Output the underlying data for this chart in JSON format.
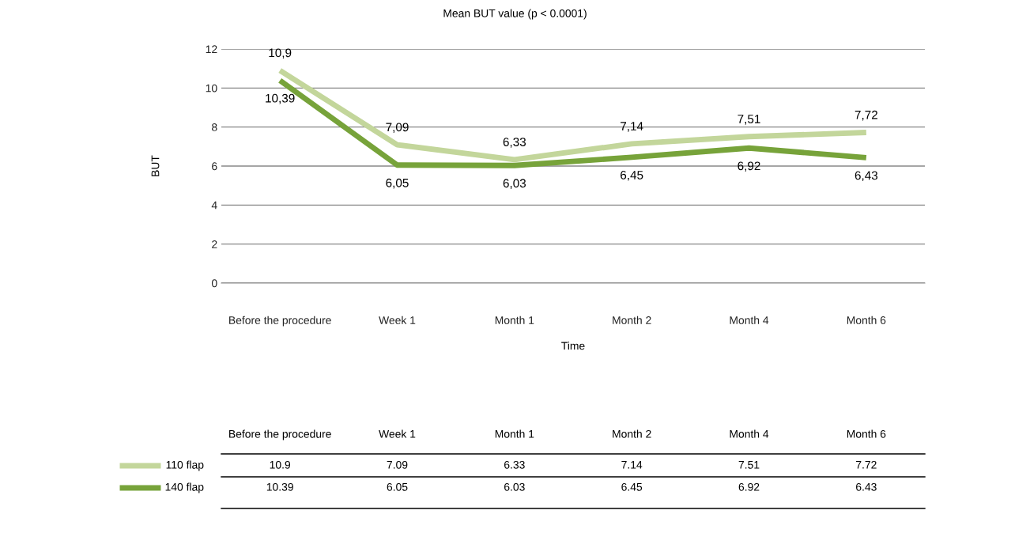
{
  "chart_data": {
    "type": "line",
    "title": "Mean BUT value (p < 0.0001)",
    "xlabel": "Time",
    "ylabel": "BUT",
    "categories": [
      "Before the procedure",
      "Week 1",
      "Month 1",
      "Month 2",
      "Month 4",
      "Month 6"
    ],
    "series": [
      {
        "name": "110 flap",
        "color": "#c3d69b",
        "values": [
          10.9,
          7.09,
          6.33,
          7.14,
          7.51,
          7.72
        ],
        "value_labels": [
          "10,9",
          "7,09",
          "6,33",
          "7,14",
          "7,51",
          "7,72"
        ]
      },
      {
        "name": "140 flap",
        "color": "#77a33a",
        "values": [
          10.39,
          6.05,
          6.03,
          6.45,
          6.92,
          6.43
        ],
        "value_labels": [
          "10,39",
          "6,05",
          "6,03",
          "6,45",
          "6,92",
          "6,43"
        ]
      }
    ],
    "annotations": [
      "10.9",
      "7.09",
      "6.33",
      "7.14",
      "7.51",
      "7.72",
      "10.39",
      "6.05",
      "6.03",
      "6.45",
      "6.92",
      "6.43"
    ],
    "ylim": [
      0,
      12
    ],
    "yticks": [
      0,
      2,
      4,
      6,
      8,
      10,
      12
    ],
    "grid": "y",
    "legend": "bottom left"
  }
}
